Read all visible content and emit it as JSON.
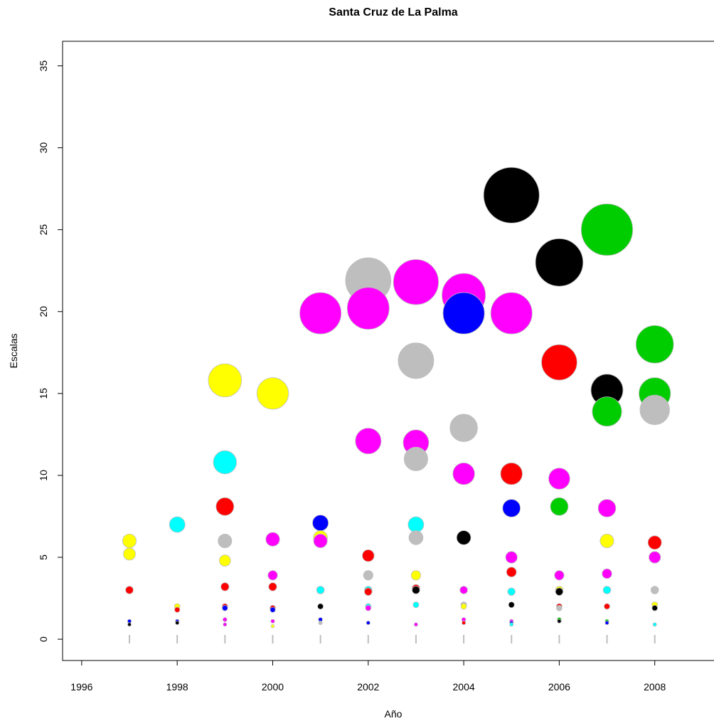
{
  "chart_data": {
    "type": "scatter",
    "title": "Santa Cruz de La Palma",
    "xlabel": "Año",
    "ylabel": "Escalas",
    "xlim": [
      1995.6,
      2009.3
    ],
    "ylim": [
      -1.3,
      36.5
    ],
    "x_ticks": [
      1996,
      1998,
      2000,
      2002,
      2004,
      2006,
      2008
    ],
    "y_ticks": [
      0,
      5,
      10,
      15,
      20,
      25,
      30,
      35
    ],
    "grid": false,
    "legend": "none",
    "marker": "circle, radius proportional to y value",
    "points": [
      {
        "x": 1997,
        "y": 0,
        "color": "#bebebe"
      },
      {
        "x": 1997,
        "y": 0.9,
        "color": "#000000"
      },
      {
        "x": 1997,
        "y": 1.1,
        "color": "#0000ff"
      },
      {
        "x": 1997,
        "y": 3.0,
        "color": "#ff0000"
      },
      {
        "x": 1997,
        "y": 5.2,
        "color": "#ffff00"
      },
      {
        "x": 1997,
        "y": 6.0,
        "color": "#ffff00"
      },
      {
        "x": 1998,
        "y": 0,
        "color": "#bebebe"
      },
      {
        "x": 1998,
        "y": 1.0,
        "color": "#000000"
      },
      {
        "x": 1998,
        "y": 1.1,
        "color": "#0000ff"
      },
      {
        "x": 1998,
        "y": 2.0,
        "color": "#ffff00"
      },
      {
        "x": 1998,
        "y": 1.8,
        "color": "#ff0000"
      },
      {
        "x": 1998,
        "y": 7.0,
        "color": "#00ffff"
      },
      {
        "x": 1999,
        "y": 0,
        "color": "#bebebe"
      },
      {
        "x": 1999,
        "y": 0.9,
        "color": "#ff00ff"
      },
      {
        "x": 1999,
        "y": 1.2,
        "color": "#ff00ff"
      },
      {
        "x": 1999,
        "y": 1.9,
        "color": "#0000ff"
      },
      {
        "x": 1999,
        "y": 2.0,
        "color": "#ff0000"
      },
      {
        "x": 1999,
        "y": 3.2,
        "color": "#ff0000"
      },
      {
        "x": 1999,
        "y": 4.8,
        "color": "#ffff00"
      },
      {
        "x": 1999,
        "y": 6.0,
        "color": "#bebebe"
      },
      {
        "x": 1999,
        "y": 8.1,
        "color": "#ff0000"
      },
      {
        "x": 1999,
        "y": 10.8,
        "color": "#00ffff"
      },
      {
        "x": 1999,
        "y": 15.8,
        "color": "#ffff00"
      },
      {
        "x": 2000,
        "y": 0,
        "color": "#bebebe"
      },
      {
        "x": 2000,
        "y": 0.8,
        "color": "#ffff00"
      },
      {
        "x": 2000,
        "y": 1.1,
        "color": "#ff00ff"
      },
      {
        "x": 2000,
        "y": 1.9,
        "color": "#ff0000"
      },
      {
        "x": 2000,
        "y": 1.8,
        "color": "#0000ff"
      },
      {
        "x": 2000,
        "y": 3.2,
        "color": "#ff0000"
      },
      {
        "x": 2000,
        "y": 3.9,
        "color": "#ff00ff"
      },
      {
        "x": 2000,
        "y": 6.1,
        "color": "#ff00ff"
      },
      {
        "x": 2000,
        "y": 15.0,
        "color": "#ffff00"
      },
      {
        "x": 2001,
        "y": 0,
        "color": "#bebebe"
      },
      {
        "x": 2001,
        "y": 1.0,
        "color": "#bebebe"
      },
      {
        "x": 2001,
        "y": 1.2,
        "color": "#0000ff"
      },
      {
        "x": 2001,
        "y": 2.0,
        "color": "#000000"
      },
      {
        "x": 2001,
        "y": 3.0,
        "color": "#000000"
      },
      {
        "x": 2001,
        "y": 3.0,
        "color": "#00ffff"
      },
      {
        "x": 2001,
        "y": 7.1,
        "color": "#0000ff"
      },
      {
        "x": 2001,
        "y": 6.2,
        "color": "#ffff00"
      },
      {
        "x": 2001,
        "y": 6.0,
        "color": "#ff00ff"
      },
      {
        "x": 2001,
        "y": 19.9,
        "color": "#ff00ff"
      },
      {
        "x": 2002,
        "y": 0,
        "color": "#bebebe"
      },
      {
        "x": 2002,
        "y": 1.0,
        "color": "#00cd00"
      },
      {
        "x": 2002,
        "y": 1.0,
        "color": "#0000ff"
      },
      {
        "x": 2002,
        "y": 2.0,
        "color": "#000000"
      },
      {
        "x": 2002,
        "y": 2.0,
        "color": "#bebebe"
      },
      {
        "x": 2002,
        "y": 1.9,
        "color": "#ff00ff"
      },
      {
        "x": 2002,
        "y": 2.0,
        "color": "#00ffff"
      },
      {
        "x": 2002,
        "y": 3.0,
        "color": "#00ffff"
      },
      {
        "x": 2002,
        "y": 2.9,
        "color": "#ff0000"
      },
      {
        "x": 2002,
        "y": 3.9,
        "color": "#bebebe"
      },
      {
        "x": 2002,
        "y": 5.1,
        "color": "#ff0000"
      },
      {
        "x": 2002,
        "y": 12.1,
        "color": "#ff00ff"
      },
      {
        "x": 2002,
        "y": 20.2,
        "color": "#ff00ff"
      },
      {
        "x": 2002,
        "y": 21.9,
        "color": "#bebebe"
      },
      {
        "x": 2003,
        "y": 0,
        "color": "#bebebe"
      },
      {
        "x": 2003,
        "y": 0.9,
        "color": "#000000"
      },
      {
        "x": 2003,
        "y": 0.9,
        "color": "#ff00ff"
      },
      {
        "x": 2003,
        "y": 2.1,
        "color": "#00ffff"
      },
      {
        "x": 2003,
        "y": 3.0,
        "color": "#000000"
      },
      {
        "x": 2003,
        "y": 3.9,
        "color": "#ffff00"
      },
      {
        "x": 2003,
        "y": 3.1,
        "color": "#ff0000"
      },
      {
        "x": 2003,
        "y": 7.0,
        "color": "#00ffff"
      },
      {
        "x": 2003,
        "y": 6.2,
        "color": "#bebebe"
      },
      {
        "x": 2003,
        "y": 12.0,
        "color": "#ff00ff"
      },
      {
        "x": 2003,
        "y": 11.0,
        "color": "#bebebe"
      },
      {
        "x": 2003,
        "y": 17.0,
        "color": "#bebebe"
      },
      {
        "x": 2003,
        "y": 21.8,
        "color": "#ff00ff"
      },
      {
        "x": 2004,
        "y": 0,
        "color": "#bebebe"
      },
      {
        "x": 2004,
        "y": 1.0,
        "color": "#ff0000"
      },
      {
        "x": 2004,
        "y": 1.2,
        "color": "#ff00ff"
      },
      {
        "x": 2004,
        "y": 3.0,
        "color": "#ff00ff"
      },
      {
        "x": 2004,
        "y": 2.0,
        "color": "#ffff00"
      },
      {
        "x": 2004,
        "y": 2.1,
        "color": "#bebebe"
      },
      {
        "x": 2004,
        "y": 6.2,
        "color": "#000000"
      },
      {
        "x": 2004,
        "y": 10.1,
        "color": "#ff00ff"
      },
      {
        "x": 2004,
        "y": 12.9,
        "color": "#bebebe"
      },
      {
        "x": 2004,
        "y": 21.0,
        "color": "#ff00ff"
      },
      {
        "x": 2004,
        "y": 19.9,
        "color": "#0000ff"
      },
      {
        "x": 2005,
        "y": 0,
        "color": "#bebebe"
      },
      {
        "x": 2005,
        "y": 1.0,
        "color": "#0000ff"
      },
      {
        "x": 2005,
        "y": 1.1,
        "color": "#ff00ff"
      },
      {
        "x": 2005,
        "y": 0.9,
        "color": "#00ffff"
      },
      {
        "x": 2005,
        "y": 2.1,
        "color": "#000000"
      },
      {
        "x": 2005,
        "y": 2.9,
        "color": "#00ffff"
      },
      {
        "x": 2005,
        "y": 5.0,
        "color": "#ff00ff"
      },
      {
        "x": 2005,
        "y": 4.1,
        "color": "#ff0000"
      },
      {
        "x": 2005,
        "y": 8.0,
        "color": "#0000ff"
      },
      {
        "x": 2005,
        "y": 10.1,
        "color": "#ff0000"
      },
      {
        "x": 2005,
        "y": 19.9,
        "color": "#ff00ff"
      },
      {
        "x": 2005,
        "y": 27.1,
        "color": "#000000"
      },
      {
        "x": 2006,
        "y": 0,
        "color": "#bebebe"
      },
      {
        "x": 2006,
        "y": 1.1,
        "color": "#000000"
      },
      {
        "x": 2006,
        "y": 1.2,
        "color": "#00cd00"
      },
      {
        "x": 2006,
        "y": 2.9,
        "color": "#000000"
      },
      {
        "x": 2006,
        "y": 3.0,
        "color": "#ffff00"
      },
      {
        "x": 2006,
        "y": 2.0,
        "color": "#ff0000"
      },
      {
        "x": 2006,
        "y": 1.9,
        "color": "#bebebe"
      },
      {
        "x": 2006,
        "y": 3.9,
        "color": "#ff00ff"
      },
      {
        "x": 2006,
        "y": 8.1,
        "color": "#00cd00"
      },
      {
        "x": 2006,
        "y": 9.8,
        "color": "#ff00ff"
      },
      {
        "x": 2006,
        "y": 16.9,
        "color": "#ff0000"
      },
      {
        "x": 2006,
        "y": 23.0,
        "color": "#000000"
      },
      {
        "x": 2007,
        "y": 0,
        "color": "#bebebe"
      },
      {
        "x": 2007,
        "y": 1.0,
        "color": "#0000ff"
      },
      {
        "x": 2007,
        "y": 2.0,
        "color": "#000000"
      },
      {
        "x": 2007,
        "y": 2.0,
        "color": "#ff0000"
      },
      {
        "x": 2007,
        "y": 1.1,
        "color": "#00cd00"
      },
      {
        "x": 2007,
        "y": 4.0,
        "color": "#ff00ff"
      },
      {
        "x": 2007,
        "y": 3.0,
        "color": "#00ffff"
      },
      {
        "x": 2007,
        "y": 6.0,
        "color": "#ffff00"
      },
      {
        "x": 2007,
        "y": 8.0,
        "color": "#ff00ff"
      },
      {
        "x": 2007,
        "y": 15.2,
        "color": "#000000"
      },
      {
        "x": 2007,
        "y": 13.9,
        "color": "#00cd00"
      },
      {
        "x": 2007,
        "y": 25.0,
        "color": "#00cd00"
      },
      {
        "x": 2008,
        "y": 0,
        "color": "#bebebe"
      },
      {
        "x": 2008,
        "y": 2.1,
        "color": "#ffff00"
      },
      {
        "x": 2008,
        "y": 1.9,
        "color": "#000000"
      },
      {
        "x": 2008,
        "y": 0.9,
        "color": "#00ffff"
      },
      {
        "x": 2008,
        "y": 3.0,
        "color": "#bebebe"
      },
      {
        "x": 2008,
        "y": 5.0,
        "color": "#ff00ff"
      },
      {
        "x": 2008,
        "y": 5.9,
        "color": "#ff0000"
      },
      {
        "x": 2008,
        "y": 14.0,
        "color": "#bebebe"
      },
      {
        "x": 2008,
        "y": 15.0,
        "color": "#00cd00"
      },
      {
        "x": 2008,
        "y": 18.0,
        "color": "#00cd00"
      }
    ]
  }
}
